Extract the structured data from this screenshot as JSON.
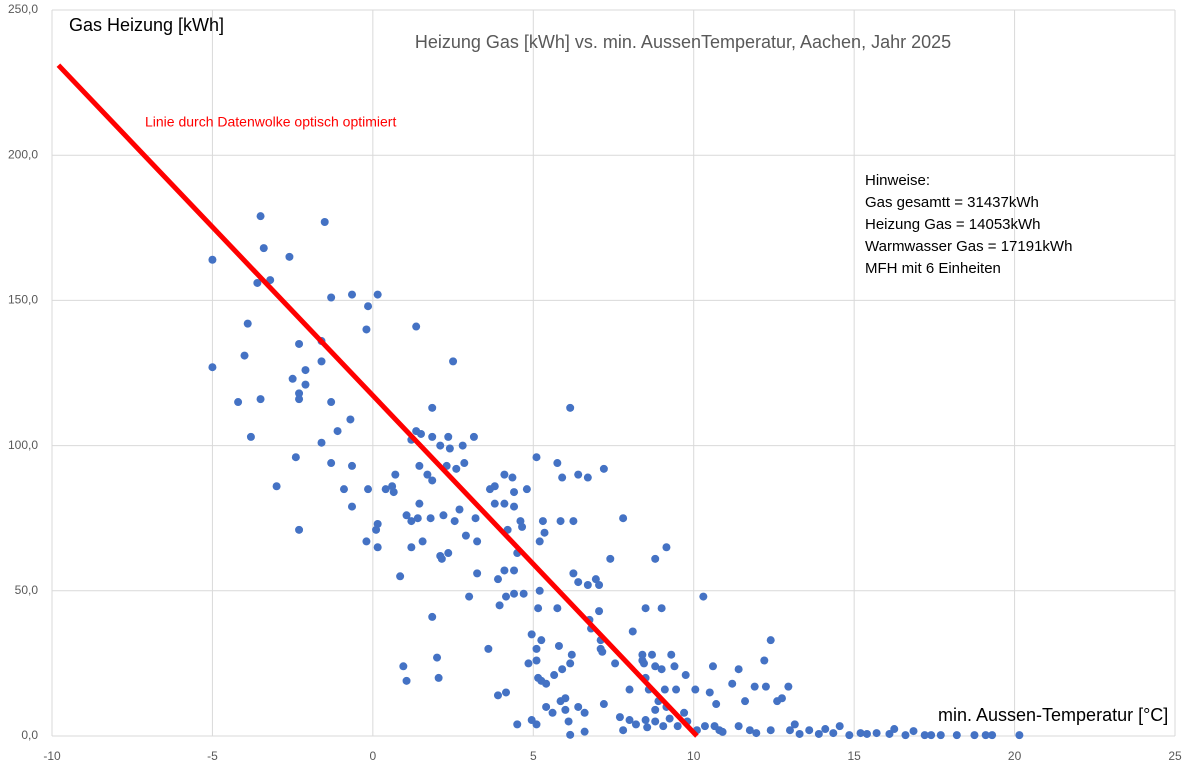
{
  "chart_data": {
    "type": "scatter",
    "title": "Heizung Gas [kWh] vs. min. AussenTemperatur, Aachen, Jahr 2025",
    "y_label": "Gas Heizung [kWh]",
    "x_label": "min. Aussen-Temperatur [°C]",
    "annotation": "Linie durch Datenwolke optisch optimiert",
    "notes": [
      "Hinweise:",
      "Gas gesamtt = 31437kWh",
      "Heizung Gas = 14053kWh",
      "Warmwasser Gas = 17191kWh",
      "MFH mit 6 Einheiten"
    ],
    "color": "#4472c4",
    "grid": true,
    "xlim": [
      -10,
      25
    ],
    "xticks": [
      -10,
      -5,
      0,
      5,
      10,
      15,
      20,
      25
    ],
    "ylim": [
      0,
      250
    ],
    "yticks": [
      {
        "value": 0,
        "label": "0,0"
      },
      {
        "value": 50,
        "label": "50,0"
      },
      {
        "value": 100,
        "label": "100,0"
      },
      {
        "value": 150,
        "label": "150,0"
      },
      {
        "value": 200,
        "label": "200,0"
      },
      {
        "value": 250,
        "label": "250,0"
      }
    ],
    "trend_line": {
      "color": "#ff0000",
      "x": [
        -9.8,
        10.1
      ],
      "y": [
        231,
        0
      ]
    },
    "x": [
      -5.0,
      -5.0,
      -3.5,
      -3.4,
      -3.6,
      -3.2,
      -2.6,
      -1.5,
      -3.9,
      -4.0,
      -4.2,
      -3.5,
      -3.8,
      -3.0,
      -2.3,
      -2.5,
      -2.1,
      -2.1,
      -2.3,
      -2.3,
      -1.6,
      -1.6,
      -1.3,
      -1.3,
      -1.6,
      -1.1,
      -0.7,
      -2.4,
      -1.3,
      -0.65,
      -0.9,
      -0.65,
      -2.3,
      -0.65,
      -0.2,
      -0.15,
      0.15,
      -0.15,
      -0.2,
      0.1,
      0.15,
      0.15,
      0.4,
      0.6,
      0.65,
      0.7,
      0.85,
      0.95,
      1.05,
      1.05,
      1.2,
      1.2,
      1.2,
      1.35,
      1.35,
      1.45,
      1.4,
      1.55,
      1.5,
      1.45,
      1.7,
      1.85,
      1.85,
      1.85,
      1.85,
      1.8,
      2.0,
      2.05,
      2.1,
      2.15,
      2.2,
      2.1,
      2.35,
      2.3,
      2.4,
      2.5,
      2.6,
      2.55,
      2.35,
      2.7,
      2.8,
      2.85,
      2.9,
      3.0,
      3.15,
      3.2,
      3.25,
      3.25,
      3.6,
      3.65,
      3.8,
      3.8,
      3.9,
      4.1,
      4.1,
      4.1,
      3.95,
      3.9,
      4.15,
      4.2,
      4.15,
      4.4,
      4.35,
      4.4,
      4.4,
      4.4,
      4.6,
      4.65,
      4.5,
      4.5,
      4.8,
      4.7,
      4.85,
      5.1,
      5.2,
      5.2,
      5.15,
      4.95,
      5.1,
      5.1,
      5.15,
      5.25,
      4.95,
      5.1,
      5.3,
      5.35,
      5.4,
      5.4,
      5.25,
      5.6,
      5.65,
      5.75,
      5.75,
      5.8,
      5.85,
      5.9,
      5.85,
      5.9,
      6.0,
      6.0,
      6.1,
      6.15,
      6.15,
      6.15,
      6.2,
      6.25,
      6.25,
      6.4,
      6.4,
      6.4,
      6.6,
      6.7,
      6.7,
      6.75,
      6.6,
      6.8,
      6.95,
      7.05,
      7.05,
      7.1,
      7.1,
      7.2,
      7.15,
      7.2,
      7.4,
      7.55,
      7.7,
      7.8,
      7.8,
      8.0,
      8.0,
      8.1,
      8.2,
      8.4,
      8.5,
      8.4,
      8.45,
      8.5,
      8.5,
      8.6,
      8.55,
      8.7,
      8.8,
      8.8,
      8.8,
      8.8,
      9.0,
      8.9,
      9.0,
      9.1,
      9.05,
      9.15,
      9.15,
      9.25,
      9.3,
      9.4,
      9.45,
      9.5,
      9.75,
      9.7,
      9.8,
      10.05,
      10.1,
      10.3,
      10.35,
      10.5,
      10.6,
      10.65,
      10.7,
      10.8,
      10.9,
      11.2,
      11.4,
      11.4,
      11.6,
      11.75,
      11.9,
      11.95,
      12.2,
      12.25,
      12.4,
      12.4,
      12.6,
      12.75,
      12.95,
      13.0,
      13.15,
      13.3,
      13.6,
      13.9,
      14.1,
      14.35,
      14.55,
      14.85,
      15.2,
      15.4,
      15.7,
      16.1,
      16.25,
      16.6,
      16.85,
      17.2,
      17.4,
      17.7,
      18.2,
      18.75,
      19.1,
      19.3,
      20.15
    ],
    "values": [
      164,
      127,
      179,
      168,
      156,
      157,
      165,
      177,
      142,
      131,
      115,
      116,
      103,
      86,
      135,
      123,
      121,
      126,
      118,
      116,
      136,
      129,
      151,
      115,
      101,
      105,
      109,
      96,
      94,
      93,
      85,
      79,
      71,
      152,
      140,
      148,
      152,
      85,
      67,
      71,
      73,
      65,
      85,
      86,
      84,
      90,
      55,
      24,
      19,
      76,
      74,
      65,
      102,
      141,
      105,
      80,
      75,
      67,
      104,
      93,
      90,
      113,
      103,
      88,
      41,
      75,
      27,
      20,
      62,
      61,
      76,
      100,
      103,
      93,
      99,
      129,
      92,
      74,
      63,
      78,
      100,
      94,
      69,
      48,
      103,
      75,
      67,
      56,
      30,
      85,
      80,
      86,
      54,
      90,
      57,
      80,
      45,
      14,
      15,
      71,
      48,
      49,
      89,
      84,
      57,
      79,
      74,
      72,
      63,
      4,
      85,
      49,
      25,
      96,
      67,
      50,
      44,
      35,
      30,
      26,
      20,
      19,
      5.5,
      4,
      74,
      70,
      18,
      10,
      33,
      8,
      21,
      94,
      44,
      31,
      12,
      89,
      74,
      23,
      13,
      9,
      5,
      113,
      25,
      0.4,
      28,
      74,
      56,
      90,
      53,
      10,
      8,
      89,
      52,
      40,
      1.5,
      37,
      54,
      52,
      43,
      33,
      30,
      92,
      29,
      11,
      61,
      25,
      6.5,
      75,
      2,
      16,
      5.5,
      36,
      4,
      26,
      44,
      28,
      25,
      20,
      5.5,
      16,
      3,
      28,
      61,
      24,
      9,
      5,
      44,
      12,
      23,
      16,
      3.4,
      65,
      10,
      6,
      28,
      24,
      16,
      3.4,
      21,
      8,
      5,
      16,
      2,
      48,
      3.4,
      15,
      24,
      3.4,
      11,
      2,
      1.4,
      18,
      23,
      3.4,
      12,
      2,
      17,
      1,
      26,
      17,
      33,
      2,
      12,
      13,
      17,
      2,
      4,
      0.7,
      2,
      0.7,
      2.4,
      1,
      3.4,
      0.3,
      1,
      0.7,
      1,
      0.7,
      2.4,
      0.3,
      1.7,
      0.3,
      0.3,
      0.3,
      0.3,
      0.3,
      0.3,
      0.3,
      0.3
    ]
  }
}
